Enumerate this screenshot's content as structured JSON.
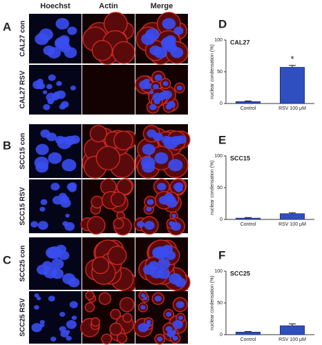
{
  "figure": {
    "panels": [
      "A",
      "B",
      "C"
    ],
    "columns": [
      "Hoechst",
      "Actin",
      "Merge"
    ],
    "rows": [
      "CAL27 con",
      "CAL27 RSV",
      "SCC15 con",
      "SCC15 RSV",
      "SCC25 con",
      "SCC25 RSV"
    ]
  },
  "chart_data": [
    {
      "type": "bar",
      "panel": "D",
      "title": "CAL27",
      "y_label": "nuclear condensation (%)",
      "categories": [
        "Control",
        "RSV 100 μM"
      ],
      "values": [
        3,
        57
      ],
      "errors": [
        1,
        3
      ],
      "annotation": "*",
      "color": "#2f4fbf",
      "ylim": [
        0,
        100
      ],
      "yticks": [
        0,
        50,
        100
      ]
    },
    {
      "type": "bar",
      "panel": "E",
      "title": "SCC15",
      "y_label": "nuclear condensation (%)",
      "categories": [
        "Control",
        "RSV 100 μM"
      ],
      "values": [
        2,
        9
      ],
      "errors": [
        1,
        1.5
      ],
      "color": "#2f4fbf",
      "ylim": [
        0,
        100
      ],
      "yticks": [
        0,
        50,
        100
      ]
    },
    {
      "type": "bar",
      "panel": "F",
      "title": "SCC25",
      "y_label": "nuclear condensation (%)",
      "categories": [
        "Control",
        "RSV 100 μM"
      ],
      "values": [
        4,
        14
      ],
      "errors": [
        1,
        3
      ],
      "color": "#2f4fbf",
      "ylim": [
        0,
        100
      ],
      "yticks": [
        0,
        50,
        100
      ]
    }
  ]
}
